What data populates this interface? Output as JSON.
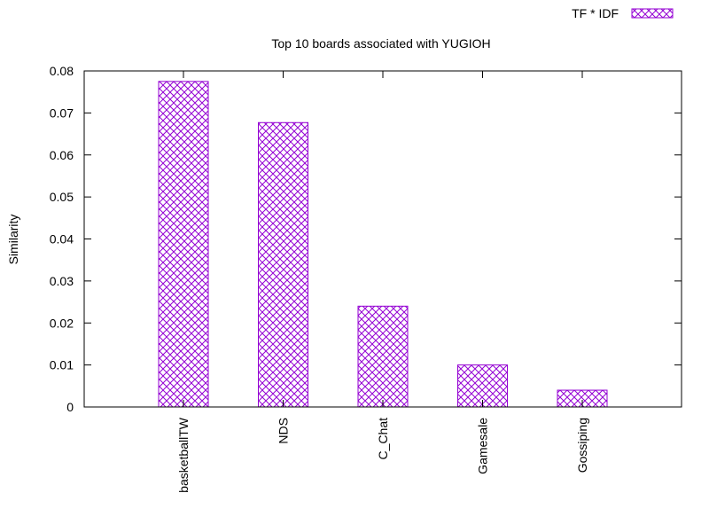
{
  "chart_data": {
    "type": "bar",
    "title": "Top 10 boards associated with YUGIOH",
    "xlabel": "",
    "ylabel": "Similarity",
    "categories": [
      "basketballTW",
      "NDS",
      "C_Chat",
      "Gamesale",
      "Gossiping"
    ],
    "series": [
      {
        "name": "TF * IDF",
        "values": [
          0.0775,
          0.0677,
          0.024,
          0.01,
          0.004
        ]
      }
    ],
    "ylim": [
      0,
      0.08
    ],
    "yticks": [
      "0",
      "0.01",
      "0.02",
      "0.03",
      "0.04",
      "0.05",
      "0.06",
      "0.07",
      "0.08"
    ],
    "legend_position": "top-right",
    "grid": false,
    "bar_color": "#9400d3",
    "bar_pattern": "crosshatch"
  }
}
